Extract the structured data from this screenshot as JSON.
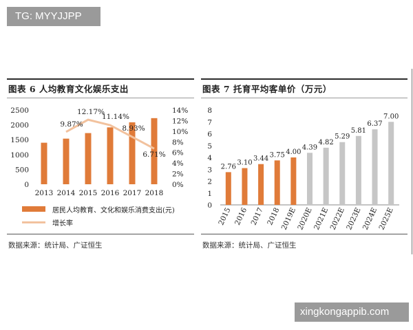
{
  "watermarks": {
    "top": "TG: MYYJJPP",
    "bottom": "xingkongappib.com"
  },
  "colors": {
    "bar": "#E07B39",
    "line": "#F2C29E",
    "forecast_bar": "#C6C6C6",
    "rule": "#2b2b2b"
  },
  "left_panel": {
    "title": "图表 6 人均教育文化娱乐支出",
    "source": "数据来源：统计局、广证恒生"
  },
  "right_panel": {
    "title": "图表 7 托育平均客单价（万元）",
    "source": "数据来源：统计局、广证恒生"
  },
  "chart_data": [
    {
      "type": "bar",
      "title": "图表 6 人均教育文化娱乐支出",
      "categories": [
        "2013",
        "2014",
        "2015",
        "2016",
        "2017",
        "2018"
      ],
      "series": [
        {
          "name": "居民人均教育、文化和娱乐消费支出(元)",
          "type": "bar",
          "axis": "left",
          "values": [
            1398,
            1536,
            1723,
            1915,
            2086,
            2226
          ]
        },
        {
          "name": "增长率",
          "type": "line",
          "axis": "right",
          "values": [
            null,
            9.87,
            12.17,
            11.14,
            8.93,
            6.71
          ],
          "labels": [
            "",
            "9.87%",
            "12.17%",
            "11.14%",
            "8.93%",
            "6.71%"
          ]
        }
      ],
      "ylim": [
        0,
        2500
      ],
      "yticks": [
        "0",
        "500",
        "1000",
        "1500",
        "2000",
        "2500"
      ],
      "y2lim": [
        0,
        14
      ],
      "y2ticks": [
        "0%",
        "2%",
        "4%",
        "6%",
        "8%",
        "10%",
        "12%",
        "14%"
      ],
      "legend": "bottom"
    },
    {
      "type": "bar",
      "title": "图表 7 托育平均客单价（万元）",
      "categories": [
        "2015",
        "2016",
        "2017",
        "2018",
        "2019E",
        "2020E",
        "2021E",
        "2022E",
        "2023E",
        "2024E",
        "2025E"
      ],
      "values": [
        2.76,
        3.1,
        3.44,
        3.75,
        4.0,
        4.39,
        4.82,
        5.29,
        5.81,
        6.37,
        7.0
      ],
      "labels": [
        "2.76",
        "3.10",
        "3.44",
        "3.75",
        "4.00",
        "4.39",
        "4.82",
        "5.29",
        "5.81",
        "6.37",
        "7.00"
      ],
      "actual_count": 5,
      "ylim": [
        0,
        8
      ],
      "yticks": [
        "0",
        "1",
        "2",
        "3",
        "4",
        "5",
        "6",
        "7",
        "8"
      ]
    }
  ]
}
